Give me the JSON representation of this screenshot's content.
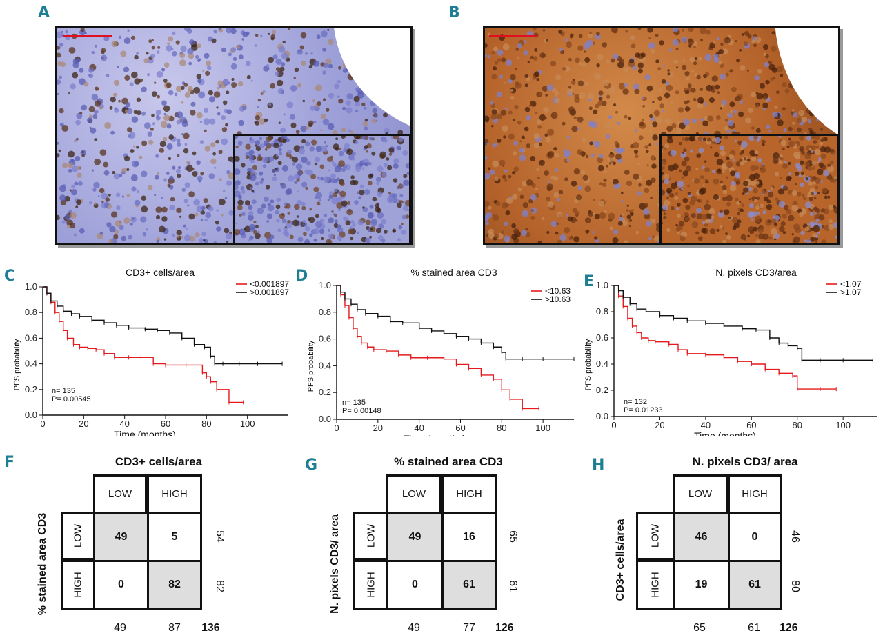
{
  "panels": {
    "A": "A",
    "B": "B",
    "C": "C",
    "D": "D",
    "E": "E",
    "F": "F",
    "G": "G",
    "H": "H"
  },
  "colors": {
    "low": "#e41a1c",
    "high": "#111111",
    "accent": "#1e7f94",
    "gray_cell": "#dedede"
  },
  "chart_data": [
    {
      "type": "line",
      "panel": "C",
      "title": "CD3+ cells/area",
      "xlabel": "Time (months)",
      "ylabel": "PFS probability",
      "xlim": [
        0,
        120
      ],
      "ylim": [
        0,
        1.0
      ],
      "xticks": [
        "0",
        "20",
        "40",
        "60",
        "80",
        "100"
      ],
      "yticks": [
        "0.0",
        "0.2",
        "0.4",
        "0.6",
        "0.8",
        "1.0"
      ],
      "n_label": "n= 135",
      "p_label": "P= 0.00545",
      "series": [
        {
          "name": "<0.001897",
          "color": "#e41a1c",
          "x": [
            0,
            2,
            4,
            6,
            8,
            10,
            12,
            15,
            18,
            22,
            26,
            30,
            35,
            42,
            48,
            54,
            60,
            70,
            78,
            80,
            82,
            85,
            91,
            98
          ],
          "y": [
            1.0,
            0.95,
            0.88,
            0.8,
            0.73,
            0.66,
            0.6,
            0.55,
            0.53,
            0.52,
            0.51,
            0.48,
            0.45,
            0.45,
            0.45,
            0.4,
            0.39,
            0.39,
            0.33,
            0.3,
            0.26,
            0.2,
            0.1,
            0.1
          ]
        },
        {
          "name": ">0.001897",
          "color": "#111111",
          "x": [
            0,
            2,
            4,
            7,
            10,
            14,
            18,
            24,
            30,
            36,
            42,
            50,
            56,
            62,
            68,
            74,
            79,
            82,
            84,
            88,
            96,
            105,
            117
          ],
          "y": [
            1.0,
            0.95,
            0.89,
            0.85,
            0.81,
            0.79,
            0.77,
            0.74,
            0.72,
            0.7,
            0.68,
            0.67,
            0.66,
            0.64,
            0.6,
            0.55,
            0.53,
            0.46,
            0.4,
            0.4,
            0.4,
            0.4,
            0.4
          ]
        }
      ]
    },
    {
      "type": "line",
      "panel": "D",
      "title": "% stained area CD3",
      "xlabel": "Time (months)",
      "ylabel": "PFS probability",
      "xlim": [
        0,
        115
      ],
      "ylim": [
        0,
        1.0
      ],
      "xticks": [
        "0",
        "20",
        "40",
        "60",
        "80",
        "100"
      ],
      "yticks": [
        "0.0",
        "0.2",
        "0.4",
        "0.6",
        "0.8",
        "1.0"
      ],
      "n_label": "n= 135",
      "p_label": "P= 0.00148",
      "series": [
        {
          "name": "<10.63",
          "color": "#e41a1c",
          "x": [
            0,
            2,
            4,
            6,
            8,
            10,
            12,
            15,
            18,
            24,
            30,
            36,
            44,
            52,
            58,
            64,
            70,
            76,
            80,
            84,
            90,
            98
          ],
          "y": [
            1.0,
            0.93,
            0.85,
            0.76,
            0.68,
            0.62,
            0.57,
            0.54,
            0.52,
            0.51,
            0.48,
            0.46,
            0.46,
            0.45,
            0.41,
            0.38,
            0.33,
            0.3,
            0.22,
            0.15,
            0.08,
            0.08
          ]
        },
        {
          "name": ">10.63",
          "color": "#111111",
          "x": [
            0,
            2,
            4,
            7,
            10,
            14,
            20,
            26,
            32,
            40,
            46,
            52,
            58,
            64,
            70,
            76,
            80,
            82,
            90,
            100,
            115
          ],
          "y": [
            1.0,
            0.95,
            0.9,
            0.86,
            0.82,
            0.79,
            0.77,
            0.73,
            0.72,
            0.68,
            0.66,
            0.64,
            0.62,
            0.6,
            0.57,
            0.54,
            0.5,
            0.45,
            0.45,
            0.45,
            0.45
          ]
        }
      ]
    },
    {
      "type": "line",
      "panel": "E",
      "title": "N. pixels CD3/area",
      "xlabel": "Time (months)",
      "ylabel": "PFS probability",
      "xlim": [
        0,
        115
      ],
      "ylim": [
        0,
        1.0
      ],
      "xticks": [
        "0",
        "20",
        "40",
        "60",
        "80",
        "100"
      ],
      "yticks": [
        "0.0",
        "0.2",
        "0.4",
        "0.6",
        "0.8",
        "1.0"
      ],
      "n_label": "n= 132",
      "p_label": "P= 0.01233",
      "series": [
        {
          "name": "<1.07",
          "color": "#e41a1c",
          "x": [
            0,
            2,
            4,
            6,
            8,
            10,
            12,
            15,
            18,
            24,
            28,
            32,
            40,
            48,
            54,
            60,
            66,
            72,
            78,
            80,
            90,
            97
          ],
          "y": [
            1.0,
            0.92,
            0.84,
            0.75,
            0.69,
            0.64,
            0.6,
            0.58,
            0.57,
            0.55,
            0.51,
            0.48,
            0.47,
            0.45,
            0.42,
            0.4,
            0.36,
            0.33,
            0.31,
            0.21,
            0.21,
            0.21
          ]
        },
        {
          "name": ">1.07",
          "color": "#111111",
          "x": [
            0,
            2,
            4,
            7,
            10,
            14,
            20,
            26,
            32,
            40,
            48,
            56,
            62,
            68,
            72,
            76,
            80,
            82,
            90,
            100,
            113
          ],
          "y": [
            1.0,
            0.96,
            0.91,
            0.86,
            0.82,
            0.8,
            0.77,
            0.75,
            0.73,
            0.71,
            0.69,
            0.67,
            0.66,
            0.6,
            0.56,
            0.54,
            0.52,
            0.43,
            0.43,
            0.43,
            0.43
          ]
        }
      ]
    }
  ],
  "tables": [
    {
      "panel": "F",
      "title": "CD3+ cells/area",
      "side_label": "% stained area CD3",
      "col_headers": [
        "LOW",
        "HIGH"
      ],
      "row_headers": [
        "LOW",
        "HIGH"
      ],
      "cells": [
        [
          "49",
          "5"
        ],
        [
          "0",
          "82"
        ]
      ],
      "row_totals": [
        "54",
        "82"
      ],
      "col_totals": [
        "49",
        "87"
      ],
      "grand_total": "136"
    },
    {
      "panel": "G",
      "title": "% stained area CD3",
      "side_label": "N. pixels CD3/ area",
      "col_headers": [
        "LOW",
        "HIGH"
      ],
      "row_headers": [
        "LOW",
        "HIGH"
      ],
      "cells": [
        [
          "49",
          "16"
        ],
        [
          "0",
          "61"
        ]
      ],
      "row_totals": [
        "65",
        "61"
      ],
      "col_totals": [
        "49",
        "77"
      ],
      "grand_total": "126"
    },
    {
      "panel": "H",
      "title": "N. pixels CD3/ area",
      "side_label": "CD3+ cells/area",
      "col_headers": [
        "LOW",
        "HIGH"
      ],
      "row_headers": [
        "LOW",
        "HIGH"
      ],
      "cells": [
        [
          "46",
          "0"
        ],
        [
          "19",
          "61"
        ]
      ],
      "row_totals": [
        "46",
        "80"
      ],
      "col_totals": [
        "65",
        "61"
      ],
      "grand_total": "126"
    }
  ]
}
